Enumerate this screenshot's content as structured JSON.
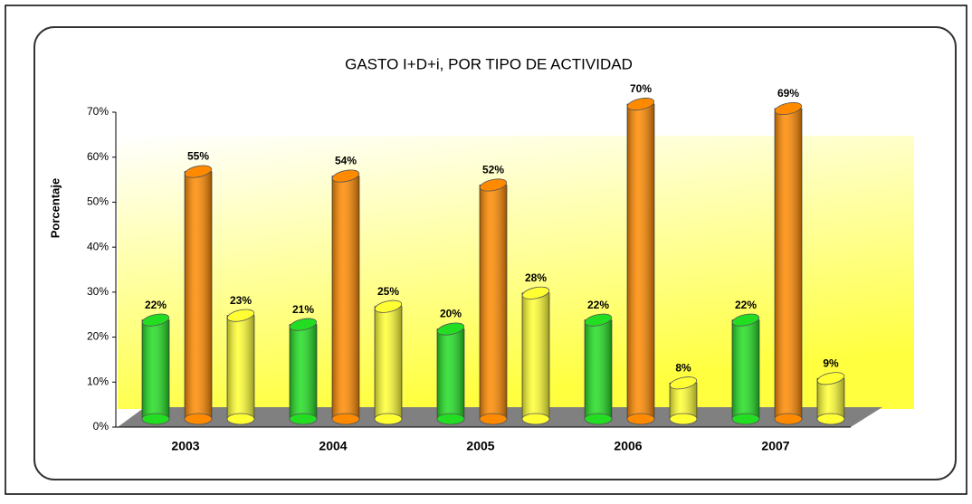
{
  "chart_data": {
    "type": "bar",
    "title": "GASTO I+D+i, POR TIPO DE ACTIVIDAD",
    "y_label": "Porcentaje",
    "categories": [
      "2003",
      "2004",
      "2005",
      "2006",
      "2007"
    ],
    "series": [
      {
        "color": "#22dd22",
        "values": [
          22,
          21,
          20,
          22,
          22
        ],
        "value_labels": [
          "22%",
          "21%",
          "20%",
          "22%",
          "22%"
        ]
      },
      {
        "color": "#ff8a00",
        "values": [
          55,
          54,
          52,
          70,
          69
        ],
        "value_labels": [
          "55%",
          "54%",
          "52%",
          "70%",
          "69%"
        ]
      },
      {
        "color": "#ffff33",
        "values": [
          23,
          25,
          28,
          8,
          9
        ],
        "value_labels": [
          "23%",
          "25%",
          "28%",
          "8%",
          "9%"
        ]
      }
    ],
    "ylim": [
      0,
      70
    ],
    "yticks": [
      {
        "value": 0,
        "label": "0%"
      },
      {
        "value": 10,
        "label": "10%"
      },
      {
        "value": 20,
        "label": "20%"
      },
      {
        "value": 30,
        "label": "30%"
      },
      {
        "value": 40,
        "label": "40%"
      },
      {
        "value": 50,
        "label": "50%"
      },
      {
        "value": 60,
        "label": "60%"
      },
      {
        "value": 70,
        "label": "70%"
      }
    ]
  }
}
